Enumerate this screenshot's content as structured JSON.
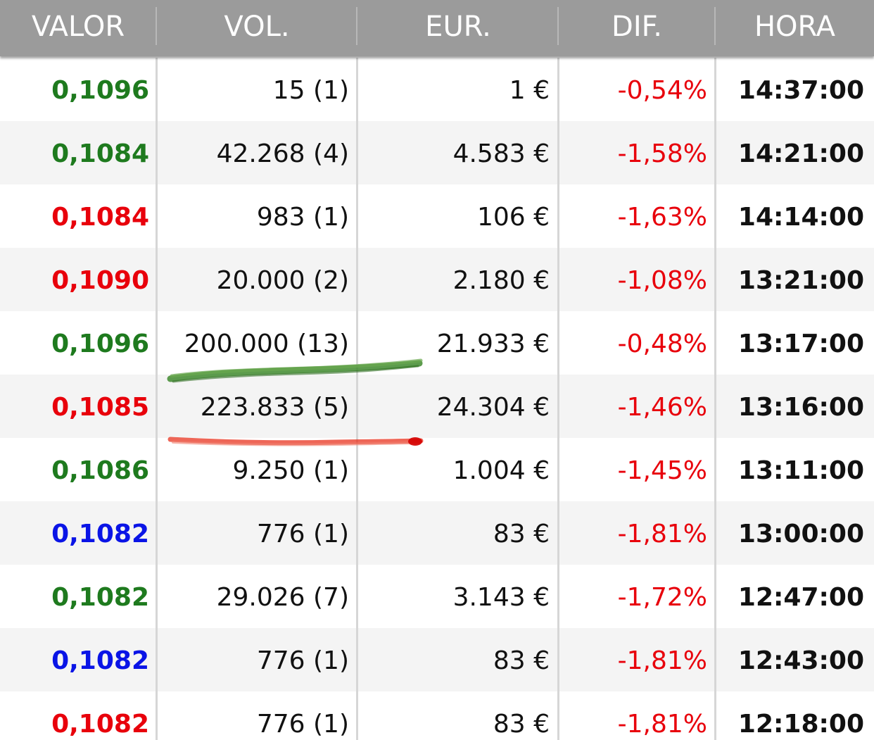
{
  "colors": {
    "up": "#1e7a1e",
    "down": "#e8000b",
    "unchanged": "#0a14e6",
    "dif": "#e8000b",
    "header_bg": "#9b9b9b",
    "header_text": "#ffffff"
  },
  "header": {
    "valor": "VALOR",
    "vol": "VOL.",
    "eur": "EUR.",
    "dif": "DIF.",
    "hora": "HORA"
  },
  "rows": [
    {
      "valor": "0,1096",
      "trend": "up",
      "vol": "15 (1)",
      "eur": "1 €",
      "dif": "-0,54%",
      "hora": "14:37:00"
    },
    {
      "valor": "0,1084",
      "trend": "up",
      "vol": "42.268 (4)",
      "eur": "4.583 €",
      "dif": "-1,58%",
      "hora": "14:21:00"
    },
    {
      "valor": "0,1084",
      "trend": "down",
      "vol": "983 (1)",
      "eur": "106 €",
      "dif": "-1,63%",
      "hora": "14:14:00"
    },
    {
      "valor": "0,1090",
      "trend": "down",
      "vol": "20.000 (2)",
      "eur": "2.180 €",
      "dif": "-1,08%",
      "hora": "13:21:00"
    },
    {
      "valor": "0,1096",
      "trend": "up",
      "vol": "200.000 (13)",
      "eur": "21.933 €",
      "dif": "-0,48%",
      "hora": "13:17:00"
    },
    {
      "valor": "0,1085",
      "trend": "down",
      "vol": "223.833 (5)",
      "eur": "24.304 €",
      "dif": "-1,46%",
      "hora": "13:16:00"
    },
    {
      "valor": "0,1086",
      "trend": "up",
      "vol": "9.250 (1)",
      "eur": "1.004 €",
      "dif": "-1,45%",
      "hora": "13:11:00"
    },
    {
      "valor": "0,1082",
      "trend": "unchanged",
      "vol": "776 (1)",
      "eur": "83 €",
      "dif": "-1,81%",
      "hora": "13:00:00"
    },
    {
      "valor": "0,1082",
      "trend": "up",
      "vol": "29.026 (7)",
      "eur": "3.143 €",
      "dif": "-1,72%",
      "hora": "12:47:00"
    },
    {
      "valor": "0,1082",
      "trend": "unchanged",
      "vol": "776 (1)",
      "eur": "83 €",
      "dif": "-1,81%",
      "hora": "12:43:00"
    },
    {
      "valor": "0,1082",
      "trend": "down",
      "vol": "776 (1)",
      "eur": "83 €",
      "dif": "-1,81%",
      "hora": "12:18:00"
    }
  ],
  "annotations": [
    {
      "type": "highlighter-stroke",
      "color": "#3f8a2e",
      "under_row": 4
    },
    {
      "type": "highlighter-stroke",
      "color": "#e8331f",
      "under_row": 5
    }
  ]
}
